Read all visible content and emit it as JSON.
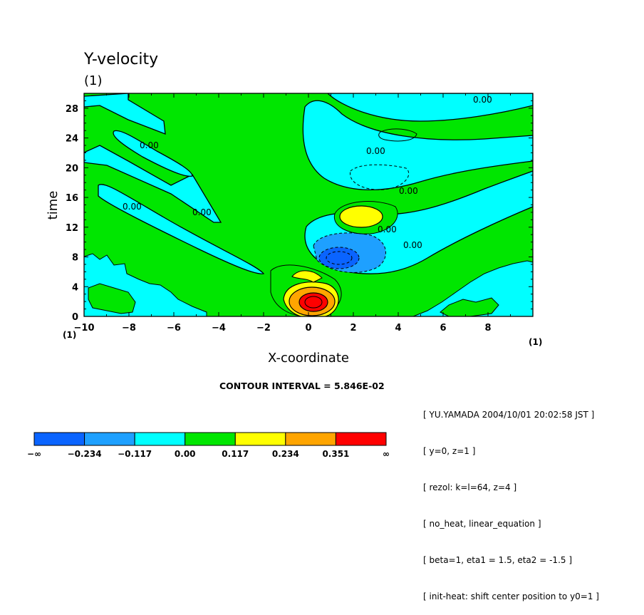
{
  "chart_data": {
    "type": "contour",
    "title": "Y-velocity",
    "title_units": "(1)",
    "xlabel": "X-coordinate",
    "ylabel": "time",
    "x_units": "(1)",
    "x_unit_right": "(1)",
    "xlim": [
      -10,
      10
    ],
    "ylim": [
      0,
      30
    ],
    "x_ticks": [
      -10,
      -8,
      -6,
      -4,
      -2,
      0,
      2,
      4,
      6,
      8
    ],
    "y_ticks": [
      0,
      4,
      8,
      12,
      16,
      20,
      24,
      28
    ],
    "contour_interval_text": "CONTOUR INTERVAL = 5.846E-02",
    "contour_line_labels": [
      "0.00",
      "0.00",
      "0.00",
      "0.00",
      "0.00",
      "0.00",
      "0.00",
      "0.00"
    ],
    "colorbar": {
      "boundaries": [
        "-∞",
        "-0.234",
        "-0.117",
        "0.00",
        "0.117",
        "0.234",
        "0.351",
        "∞"
      ],
      "colors": [
        "#0a64ff",
        "#1ea0ff",
        "#00ffff",
        "#00e600",
        "#ffff00",
        "#ffa500",
        "#ff0000"
      ]
    },
    "features": [
      {
        "name": "positive-max",
        "x": 0.3,
        "t": 2.0,
        "level": "> 0.351"
      },
      {
        "name": "negative-min",
        "x": 1.3,
        "t": 8.0,
        "level": "< -0.234"
      },
      {
        "name": "positive-secondary",
        "x": 2.3,
        "t": 13.5,
        "level": "0.117 to 0.234"
      }
    ]
  },
  "info_lines": [
    "[ YU.YAMADA 2004/10/01 20:02:58 JST ]",
    "[ y=0, z=1 ]",
    "[ rezol: k=l=64, z=4 ]",
    "[ no_heat, linear_equation ]",
    "[ beta=1, eta1 = 1.5, eta2 = -1.5 ]",
    "[ init-heat: shift center position to y0=1 ]"
  ],
  "colors": {
    "background": "#00e600",
    "cyan": "#00ffff",
    "blue_mid": "#1ea0ff",
    "blue_dark": "#0a64ff",
    "yellow": "#ffff00",
    "orange": "#ffa500",
    "red": "#ff0000"
  }
}
